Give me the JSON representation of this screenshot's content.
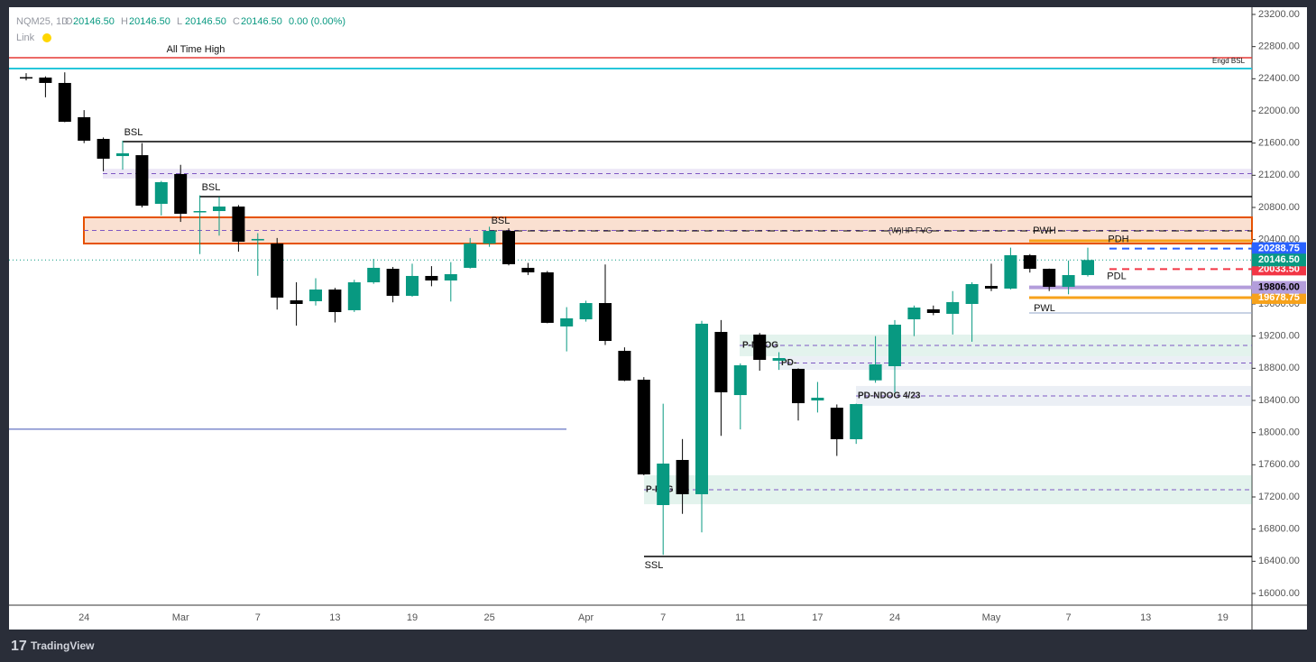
{
  "header": {
    "symbol": "NQM25, 1D",
    "fields": [
      {
        "key": "O",
        "value": "20146.50"
      },
      {
        "key": "H",
        "value": "20146.50"
      },
      {
        "key": "L",
        "value": "20146.50"
      },
      {
        "key": "C",
        "value": "20146.50"
      }
    ],
    "change": "0.00 (0.00%)",
    "link": "Link"
  },
  "brand": "TradingView",
  "chart_data": {
    "type": "candlestick",
    "categories": [
      null,
      null,
      null,
      "24",
      null,
      null,
      null,
      null,
      "Mar",
      null,
      null,
      null,
      "7",
      null,
      null,
      null,
      "13",
      null,
      null,
      null,
      "19",
      null,
      null,
      null,
      "25",
      null,
      null,
      null,
      null,
      "Apr",
      null,
      null,
      null,
      "7",
      null,
      null,
      null,
      "11",
      null,
      null,
      null,
      "17",
      null,
      null,
      null,
      "24",
      null,
      null,
      null,
      null,
      "May",
      null,
      null,
      null,
      "7",
      null,
      null,
      null,
      "13",
      null,
      null,
      null,
      "19"
    ],
    "open": [
      22420,
      22415,
      22348,
      21922,
      21652,
      21439,
      21450,
      20845,
      21215,
      20740,
      20755,
      20811,
      20390,
      20351,
      19645,
      19634,
      19779,
      19522,
      19869,
      20037,
      19701,
      19948,
      19892,
      20049,
      20351,
      20508,
      20049,
      19993,
      19320,
      19409,
      19611,
      19017,
      18658,
      17099,
      17660,
      17234,
      19252,
      18467,
      19219,
      18894,
      18793,
      18400,
      18310,
      17918,
      18650,
      18826,
      19409,
      19533,
      19477,
      19600,
      19824,
      19791,
      20206,
      20037,
      19813,
      19959,
      null,
      null,
      null,
      null,
      null,
      null,
      null
    ],
    "high": [
      22470,
      22430,
      22480,
      22010,
      21670,
      21630,
      21600,
      21130,
      21330,
      20950,
      20930,
      20830,
      20480,
      20420,
      19870,
      19920,
      19800,
      19900,
      20160,
      20060,
      20100,
      20070,
      20120,
      20420,
      20560,
      20540,
      20110,
      20010,
      19560,
      19640,
      20090,
      19060,
      18690,
      18360,
      17920,
      19390,
      19400,
      18860,
      19240,
      19000,
      18800,
      18630,
      18350,
      18360,
      19200,
      19400,
      19580,
      19580,
      19760,
      19870,
      20100,
      20300,
      20220,
      20040,
      20140,
      20300,
      null,
      null,
      null,
      null,
      null,
      null,
      null
    ],
    "low": [
      22380,
      22170,
      21860,
      21600,
      21250,
      21270,
      20800,
      20700,
      20620,
      20220,
      20450,
      20250,
      19950,
      19530,
      19330,
      19580,
      19370,
      19500,
      19850,
      19620,
      19690,
      19820,
      19630,
      20040,
      20310,
      20080,
      19960,
      19360,
      19010,
      19380,
      19090,
      18640,
      17470,
      16480,
      16990,
      16760,
      17960,
      18040,
      18770,
      18780,
      18150,
      18250,
      17710,
      17860,
      18620,
      18500,
      19200,
      19460,
      19220,
      19130,
      19760,
      19780,
      19990,
      19760,
      19720,
      19940,
      null,
      null,
      null,
      null,
      null,
      null,
      null
    ],
    "close": [
      22415,
      22348,
      21865,
      21630,
      21406,
      21473,
      20822,
      21114,
      20721,
      20755,
      20811,
      20374,
      20408,
      19679,
      19600,
      19779,
      19499,
      19869,
      20049,
      19701,
      19948,
      19892,
      19970,
      20351,
      20508,
      20094,
      19993,
      19365,
      19421,
      19611,
      19140,
      18647,
      17480,
      17615,
      17234,
      19354,
      18501,
      18837,
      18905,
      18927,
      18366,
      18434,
      17918,
      18355,
      18849,
      19342,
      19555,
      19488,
      19623,
      19847,
      19791,
      20206,
      20037,
      19813,
      19959,
      20146.5,
      null,
      null,
      null,
      null,
      null,
      null,
      null
    ],
    "up_color": "#089981",
    "down_color": "#000000",
    "last_price_label": "20146.50",
    "last_price_color": "#089981",
    "ylim": [
      15760,
      23300
    ],
    "yticks": [
      {
        "value": 16000,
        "label": "16000.00"
      },
      {
        "value": 16400,
        "label": "16400.00"
      },
      {
        "value": 16800,
        "label": "16800.00"
      },
      {
        "value": 17200,
        "label": "17200.00"
      },
      {
        "value": 17600,
        "label": "17600.00"
      },
      {
        "value": 18000,
        "label": "18000.00"
      },
      {
        "value": 18400,
        "label": "18400.00"
      },
      {
        "value": 18800,
        "label": "18800.00"
      },
      {
        "value": 19200,
        "label": "19200.00"
      },
      {
        "value": 19600,
        "label": "19600.00"
      },
      {
        "value": 20000,
        "label": "20000.00"
      },
      {
        "value": 20400,
        "label": "20400.00"
      },
      {
        "value": 20800,
        "label": "20800.00"
      },
      {
        "value": 21200,
        "label": "21200.00"
      },
      {
        "value": 21600,
        "label": "21600.00"
      },
      {
        "value": 22000,
        "label": "22000.00"
      },
      {
        "value": 22400,
        "label": "22400.00"
      },
      {
        "value": 22800,
        "label": "22800.00"
      },
      {
        "value": 23200,
        "label": "23200.00"
      }
    ],
    "grid": false,
    "levels": [
      {
        "value": 22662,
        "color": "#e53935",
        "label": "All Time High"
      },
      {
        "value": 22527,
        "color": "#26c6da",
        "label": "Engd BSL"
      },
      {
        "value": 21619,
        "color": "#000000",
        "label": "BSL"
      },
      {
        "value": 20935,
        "color": "#000000",
        "label": "BSL"
      },
      {
        "value": 20508,
        "color": "#000000",
        "label": "BSL",
        "dashed": true
      },
      {
        "value": 16460,
        "color": "#000000",
        "label": "SSL"
      },
      {
        "value": 18042,
        "color": "#3f51b5"
      },
      {
        "value": 20385,
        "color": "#f7a21b",
        "label": "PWH"
      },
      {
        "value": 19679,
        "color": "#f7a21b",
        "tag": "19678.75"
      },
      {
        "value": 19806,
        "color": "#b39ddb",
        "tag": "19806.00"
      },
      {
        "value": 19488,
        "color": "#90a4c8",
        "label": "PWL"
      },
      {
        "value": 20288.75,
        "color": "#2962ff",
        "label": "PDH",
        "dashed": true,
        "tag": "20288.75"
      },
      {
        "value": 20033.5,
        "color": "#f23645",
        "label": "PDL",
        "dashed": true,
        "tag": "20033.50"
      }
    ],
    "zones": [
      {
        "low": 20351,
        "high": 20677,
        "color": "#e65100",
        "label": "(W)HP-FVG"
      },
      {
        "low": 21160,
        "high": 21280,
        "color": "#9575cd"
      },
      {
        "low": 17110,
        "high": 17470,
        "color": "#66bb9a",
        "label": "P-FVG"
      },
      {
        "low": 18950,
        "high": 19219,
        "color": "#66bb9a",
        "label": "P-NDOG"
      },
      {
        "low": 18780,
        "high": 18950,
        "color": "#90a4c8",
        "label": "PD-"
      },
      {
        "low": 18333,
        "high": 18580,
        "color": "#90a4c8",
        "label": "PD-NDOG 4/23"
      }
    ]
  }
}
